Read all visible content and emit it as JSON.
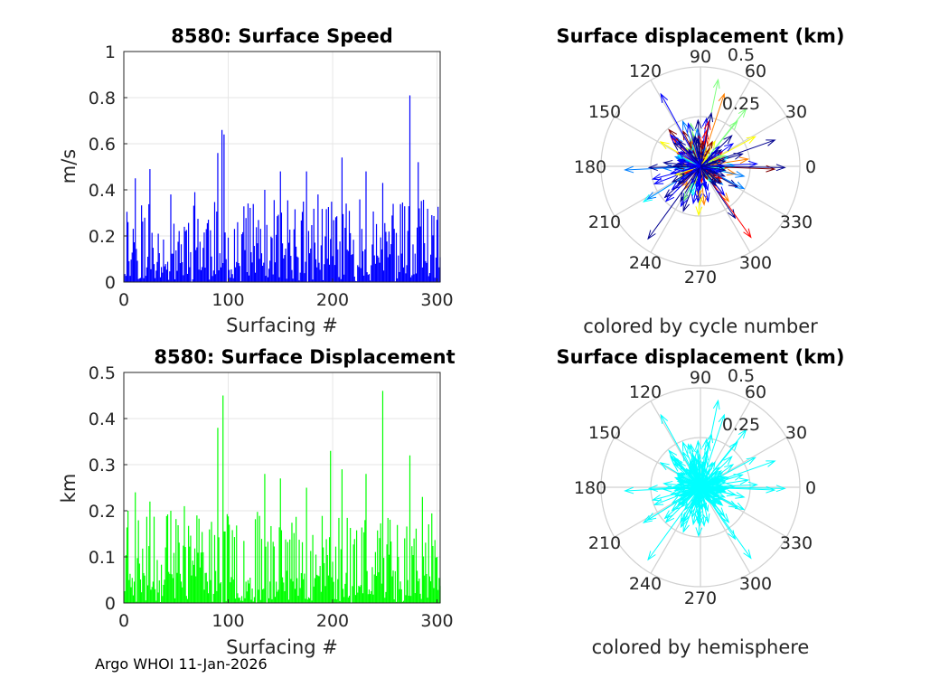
{
  "footer": "Argo WHOI 11-Jan-2026",
  "colors": {
    "speed_bar": "#0000ff",
    "displacement_bar": "#00ff00",
    "hemisphere_arrow": "#00ffff",
    "grid": "#e6e6e6",
    "axis": "#262626"
  },
  "chart_data": [
    {
      "id": "speed",
      "type": "bar",
      "title": "8580: Surface Speed",
      "xlabel": "Surfacing #",
      "ylabel": "m/s",
      "xlim": [
        0,
        303
      ],
      "ylim": [
        0,
        1
      ],
      "xticks": [
        0,
        100,
        200,
        300
      ],
      "xtick_labels": [
        "0",
        "100",
        "200",
        "300"
      ],
      "yticks": [
        0,
        0.2,
        0.4,
        0.6,
        0.8,
        1
      ],
      "ytick_labels": [
        "0",
        "0.2",
        "0.4",
        "0.6",
        "0.8",
        "1"
      ],
      "grid": true,
      "n_points": 303,
      "peaks": [
        {
          "x": 4,
          "y": 0.26
        },
        {
          "x": 11,
          "y": 0.45
        },
        {
          "x": 25,
          "y": 0.49
        },
        {
          "x": 45,
          "y": 0.38
        },
        {
          "x": 68,
          "y": 0.39
        },
        {
          "x": 90,
          "y": 0.56
        },
        {
          "x": 94,
          "y": 0.66
        },
        {
          "x": 96,
          "y": 0.64
        },
        {
          "x": 135,
          "y": 0.4
        },
        {
          "x": 150,
          "y": 0.48
        },
        {
          "x": 175,
          "y": 0.48
        },
        {
          "x": 186,
          "y": 0.38
        },
        {
          "x": 209,
          "y": 0.54
        },
        {
          "x": 232,
          "y": 0.48
        },
        {
          "x": 248,
          "y": 0.43
        },
        {
          "x": 274,
          "y": 0.81
        },
        {
          "x": 282,
          "y": 0.52
        },
        {
          "x": 300,
          "y": 0.27
        }
      ]
    },
    {
      "id": "displacement",
      "type": "bar",
      "title": "8580: Surface Displacement",
      "xlabel": "Surfacing #",
      "ylabel": "km",
      "xlim": [
        0,
        303
      ],
      "ylim": [
        0,
        0.5
      ],
      "xticks": [
        0,
        100,
        200,
        300
      ],
      "xtick_labels": [
        "0",
        "100",
        "200",
        "300"
      ],
      "yticks": [
        0,
        0.1,
        0.2,
        0.3,
        0.4,
        0.5
      ],
      "ytick_labels": [
        "0",
        "0.1",
        "0.2",
        "0.3",
        "0.4",
        "0.5"
      ],
      "grid": true,
      "n_points": 303,
      "peaks": [
        {
          "x": 4,
          "y": 0.2
        },
        {
          "x": 11,
          "y": 0.24
        },
        {
          "x": 25,
          "y": 0.22
        },
        {
          "x": 45,
          "y": 0.2
        },
        {
          "x": 58,
          "y": 0.21
        },
        {
          "x": 90,
          "y": 0.38
        },
        {
          "x": 95,
          "y": 0.45
        },
        {
          "x": 135,
          "y": 0.28
        },
        {
          "x": 150,
          "y": 0.27
        },
        {
          "x": 175,
          "y": 0.25
        },
        {
          "x": 198,
          "y": 0.33
        },
        {
          "x": 209,
          "y": 0.29
        },
        {
          "x": 232,
          "y": 0.28
        },
        {
          "x": 248,
          "y": 0.46
        },
        {
          "x": 274,
          "y": 0.32
        },
        {
          "x": 286,
          "y": 0.23
        },
        {
          "x": 300,
          "y": 0.1
        }
      ]
    },
    {
      "id": "compass_cycle",
      "type": "polar",
      "title": "Surface displacement (km)",
      "subtitle": "colored by cycle number",
      "rlim": [
        0,
        0.5
      ],
      "rticks": [
        "0.25",
        "0.5"
      ],
      "theta_ticks": [
        "0",
        "30",
        "60",
        "90",
        "120",
        "150",
        "180",
        "210",
        "240",
        "270",
        "300",
        "330"
      ],
      "color_mode": "cycle",
      "colormap": [
        "#00008f",
        "#0000ff",
        "#0080ff",
        "#00ffff",
        "#80ff80",
        "#ffff00",
        "#ff8000",
        "#ff0000",
        "#800000"
      ],
      "n_arrows": 303
    },
    {
      "id": "compass_hemisphere",
      "type": "polar",
      "title": "Surface displacement (km)",
      "subtitle": "colored by hemisphere",
      "rlim": [
        0,
        0.5
      ],
      "rticks": [
        "0.25",
        "0.5"
      ],
      "theta_ticks": [
        "0",
        "30",
        "60",
        "90",
        "120",
        "150",
        "180",
        "210",
        "240",
        "270",
        "300",
        "330"
      ],
      "color_mode": "hemisphere",
      "n_arrows": 303
    }
  ]
}
